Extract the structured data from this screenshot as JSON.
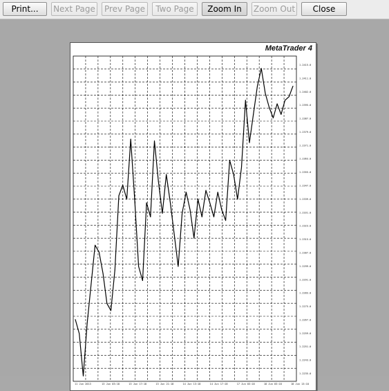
{
  "toolbar": {
    "print": "Print...",
    "next_page": "Next Page",
    "prev_page": "Prev Page",
    "two_page": "Two Page",
    "zoom_in": "Zoom In",
    "zoom_out": "Zoom Out",
    "close": "Close"
  },
  "page": {
    "brand": "MetaTrader 4"
  },
  "chart_data": {
    "type": "line",
    "title": "",
    "xlabel": "",
    "ylabel": "",
    "grid": true,
    "price_ticks": [
      "1.2415.0",
      "1.2411.0",
      "1.2402.0",
      "1.2395.0",
      "1.2387.0",
      "1.2379.0",
      "1.2371.0",
      "1.2363.0",
      "1.2355.0",
      "1.2347.0",
      "1.2339.0",
      "1.2331.0",
      "1.2323.0",
      "1.2315.0",
      "1.2307.0",
      "1.2299.0",
      "1.2291.0",
      "1.2283.0",
      "1.2275.0",
      "1.2267.0",
      "1.2259.0",
      "1.2251.0",
      "1.2243.0",
      "1.2235.0"
    ],
    "time_ticks": [
      "11 Jun 2013",
      "13 Jun 03:18",
      "13 Jun 17:18",
      "13 Jun 21:18",
      "14 Jun 13:18",
      "14 Jun 17:18",
      "17 Jun 03:18",
      "18 Jun 03:18",
      "18 Jun 13:18"
    ],
    "ylim": [
      1.2235,
      1.2419
    ],
    "x": [
      0,
      6,
      12,
      18,
      24,
      30,
      36,
      42,
      48,
      54,
      60,
      66,
      72,
      78,
      84,
      90,
      96,
      102,
      108,
      114,
      120,
      126,
      132,
      138,
      144,
      150,
      156,
      162,
      168,
      174,
      180,
      186,
      192,
      198,
      204,
      210,
      216,
      222,
      228,
      234,
      240,
      246,
      252,
      258,
      264,
      270,
      276,
      282,
      288,
      294,
      300,
      306,
      312,
      318,
      324,
      330
    ],
    "y": [
      1.227,
      1.2262,
      1.2238,
      1.2268,
      1.229,
      1.2312,
      1.2308,
      1.2296,
      1.2279,
      1.2275,
      1.2298,
      1.234,
      1.2346,
      1.2338,
      1.2372,
      1.2338,
      1.23,
      1.2292,
      1.2336,
      1.2328,
      1.2371,
      1.2348,
      1.233,
      1.2352,
      1.2336,
      1.2318,
      1.23,
      1.233,
      1.2342,
      1.2332,
      1.2316,
      1.2338,
      1.2328,
      1.2343,
      1.2336,
      1.2328,
      1.2342,
      1.2332,
      1.2326,
      1.236,
      1.2352,
      1.2338,
      1.2356,
      1.2394,
      1.237,
      1.2386,
      1.2402,
      1.2412,
      1.2398,
      1.239,
      1.2384,
      1.2392,
      1.2386,
      1.2394,
      1.2396,
      1.2402
    ]
  }
}
